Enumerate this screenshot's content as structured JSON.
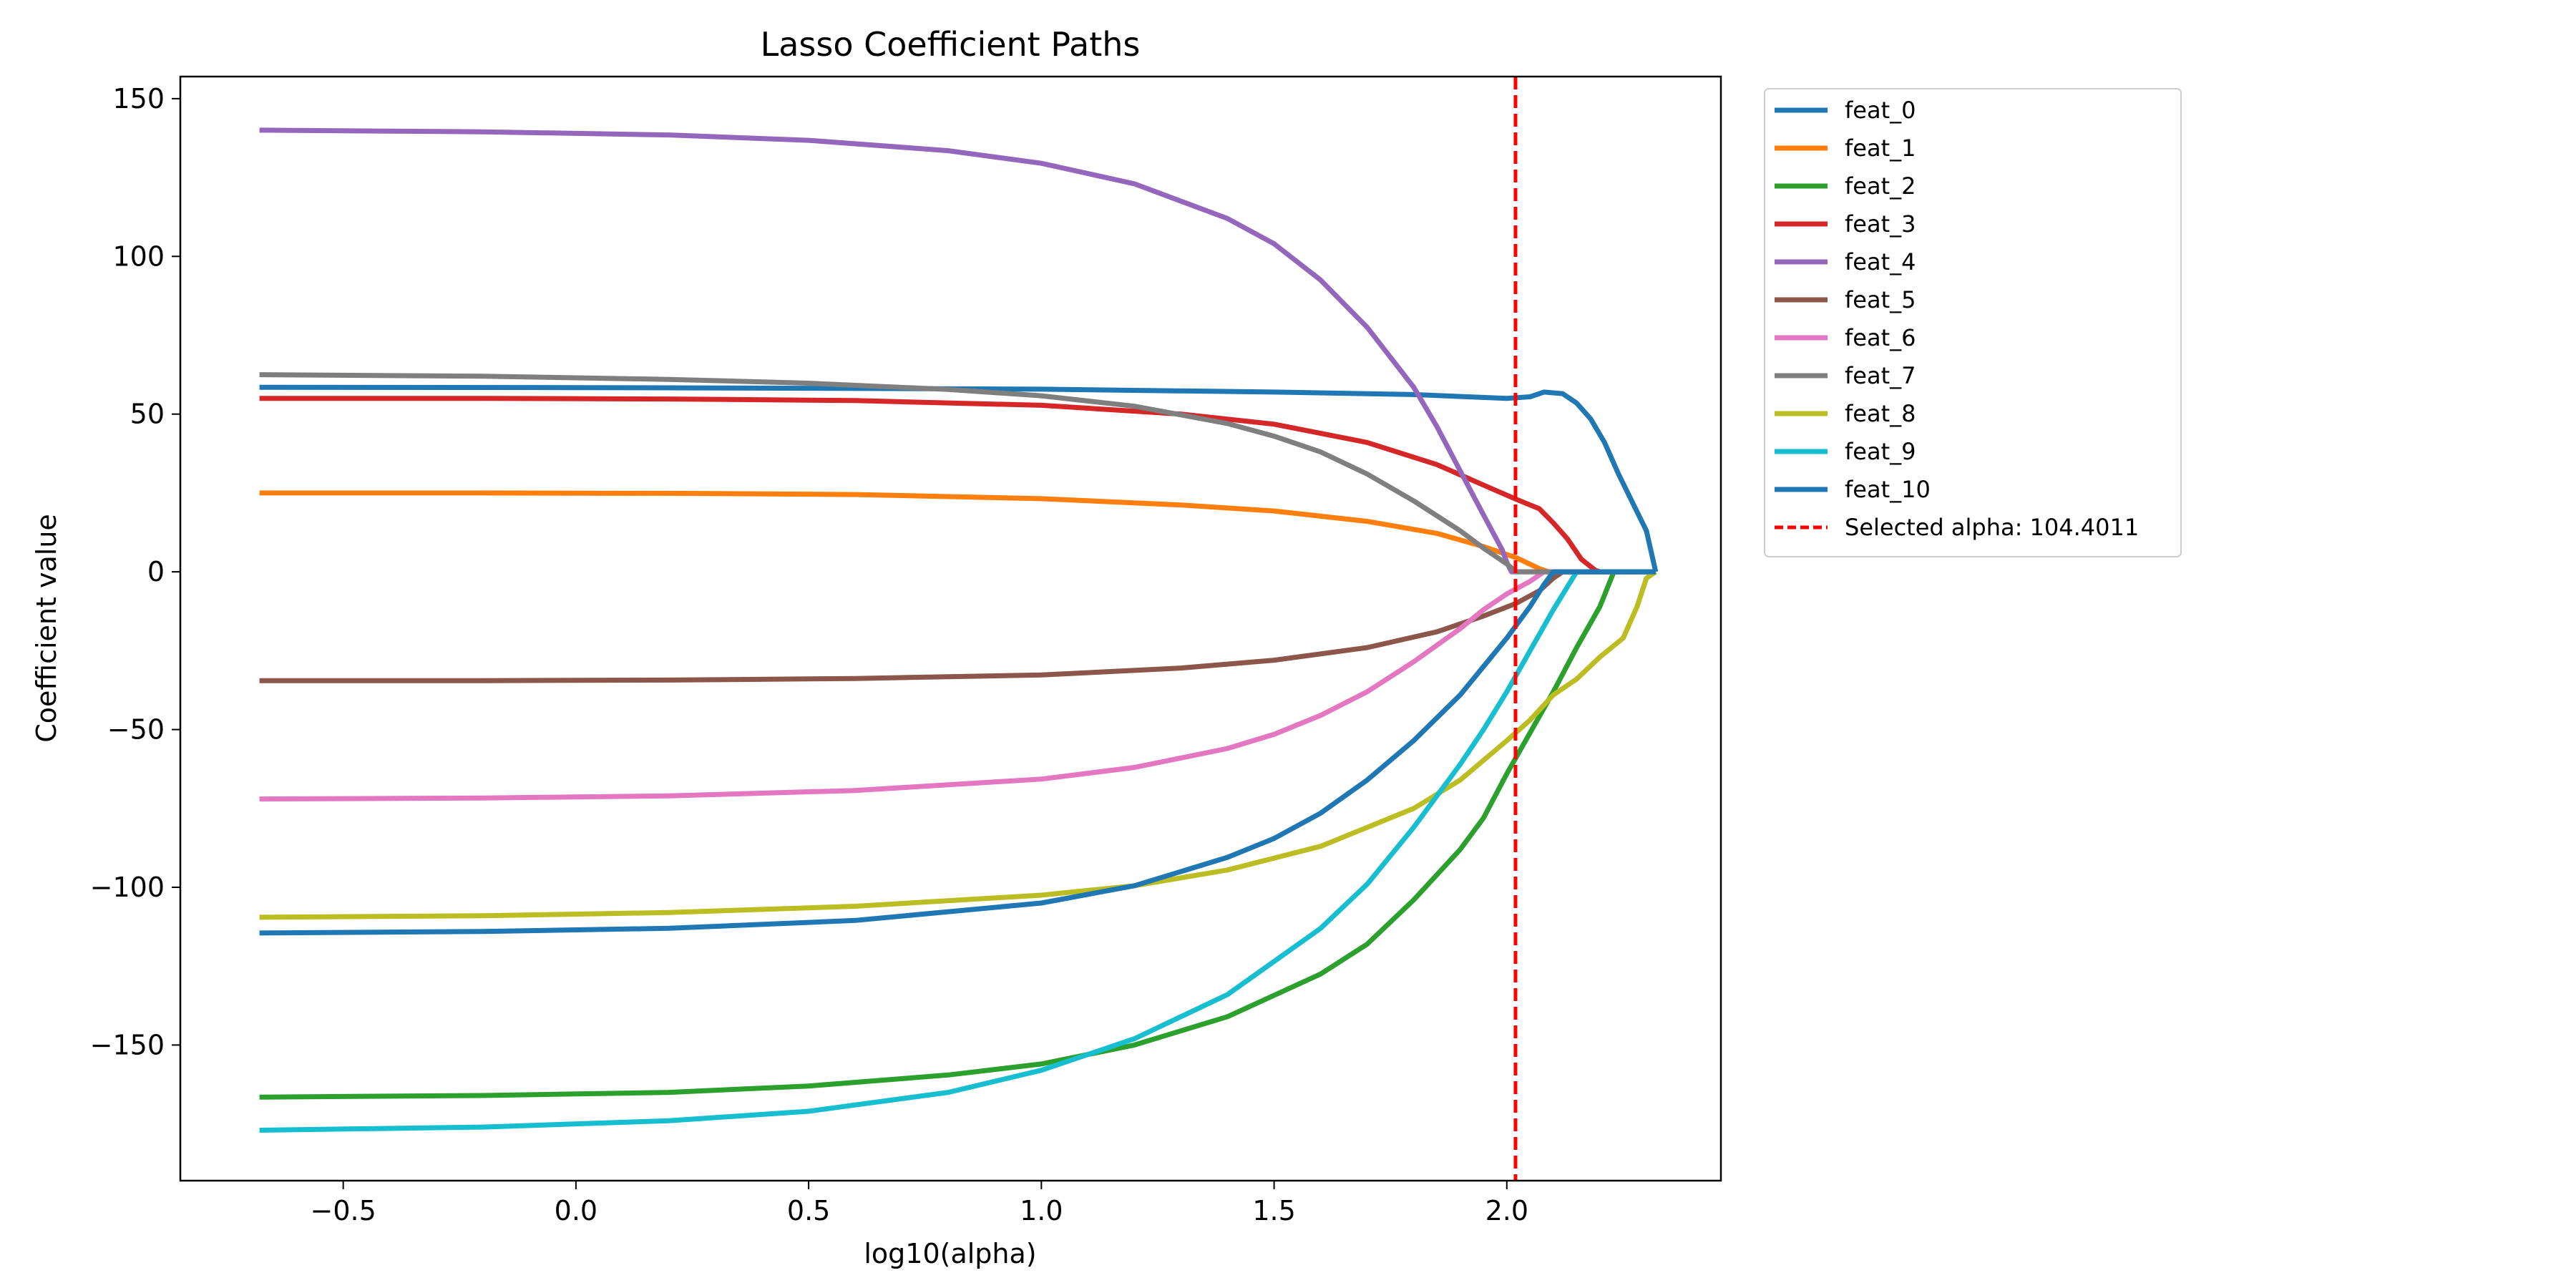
{
  "chart_data": {
    "type": "line",
    "title": "Lasso Coefficient Paths",
    "xlabel": "log10(alpha)",
    "ylabel": "Coefficient value",
    "xlim": [
      -0.85,
      2.46
    ],
    "ylim": [
      -193,
      157
    ],
    "xticks": [
      -0.5,
      0.0,
      0.5,
      1.0,
      1.5,
      2.0
    ],
    "xtick_labels": [
      "−0.5",
      "0.0",
      "0.5",
      "1.0",
      "1.5",
      "2.0"
    ],
    "yticks": [
      -150,
      -100,
      -50,
      0,
      50,
      100,
      150
    ],
    "ytick_labels": [
      "−150",
      "−100",
      "−50",
      "0",
      "50",
      "100",
      "150"
    ],
    "grid": false,
    "legend_position": "outside-top-right",
    "selected_alpha": {
      "x": 2.0187,
      "label": "Selected alpha: 104.4011",
      "color": "#ff0000"
    },
    "series": [
      {
        "name": "feat_0",
        "color": "#1f77b4",
        "points": [
          [
            -0.68,
            58.5
          ],
          [
            0.0,
            58.4
          ],
          [
            0.5,
            58.2
          ],
          [
            1.0,
            57.9
          ],
          [
            1.5,
            57.0
          ],
          [
            1.8,
            56.2
          ],
          [
            2.0,
            55.0
          ],
          [
            2.05,
            55.5
          ],
          [
            2.08,
            57.0
          ],
          [
            2.12,
            56.5
          ],
          [
            2.15,
            53.5
          ],
          [
            2.18,
            48.5
          ],
          [
            2.21,
            41.0
          ],
          [
            2.24,
            31.0
          ],
          [
            2.27,
            22.0
          ],
          [
            2.3,
            13.0
          ],
          [
            2.32,
            0.0
          ]
        ]
      },
      {
        "name": "feat_1",
        "color": "#ff7f0e",
        "points": [
          [
            -0.68,
            25.0
          ],
          [
            -0.2,
            25.0
          ],
          [
            0.2,
            24.9
          ],
          [
            0.6,
            24.5
          ],
          [
            1.0,
            23.2
          ],
          [
            1.3,
            21.2
          ],
          [
            1.5,
            19.3
          ],
          [
            1.7,
            16.0
          ],
          [
            1.85,
            12.2
          ],
          [
            1.95,
            8.0
          ],
          [
            2.02,
            4.5
          ],
          [
            2.07,
            1.0
          ],
          [
            2.09,
            0.0
          ],
          [
            2.32,
            0.0
          ]
        ]
      },
      {
        "name": "feat_2",
        "color": "#2ca02c",
        "points": [
          [
            -0.68,
            -166.5
          ],
          [
            -0.2,
            -166.0
          ],
          [
            0.2,
            -165.0
          ],
          [
            0.5,
            -163.0
          ],
          [
            0.8,
            -159.5
          ],
          [
            1.0,
            -156.0
          ],
          [
            1.2,
            -150.0
          ],
          [
            1.4,
            -141.0
          ],
          [
            1.6,
            -127.5
          ],
          [
            1.7,
            -118.0
          ],
          [
            1.8,
            -104.0
          ],
          [
            1.9,
            -88.0
          ],
          [
            1.95,
            -78.0
          ],
          [
            2.0,
            -64.0
          ],
          [
            2.05,
            -51.0
          ],
          [
            2.1,
            -38.0
          ],
          [
            2.15,
            -24.0
          ],
          [
            2.2,
            -11.0
          ],
          [
            2.23,
            0.0
          ],
          [
            2.32,
            0.0
          ]
        ]
      },
      {
        "name": "feat_3",
        "color": "#d62728",
        "points": [
          [
            -0.68,
            55.0
          ],
          [
            -0.2,
            55.0
          ],
          [
            0.2,
            54.8
          ],
          [
            0.6,
            54.3
          ],
          [
            1.0,
            52.8
          ],
          [
            1.3,
            50.0
          ],
          [
            1.5,
            46.8
          ],
          [
            1.7,
            41.0
          ],
          [
            1.85,
            34.0
          ],
          [
            1.95,
            27.5
          ],
          [
            2.02,
            23.0
          ],
          [
            2.07,
            20.0
          ],
          [
            2.1,
            15.5
          ],
          [
            2.13,
            10.5
          ],
          [
            2.16,
            4.0
          ],
          [
            2.19,
            0.5
          ],
          [
            2.2,
            0.0
          ],
          [
            2.32,
            0.0
          ]
        ]
      },
      {
        "name": "feat_4",
        "color": "#9467bd",
        "points": [
          [
            -0.68,
            140.0
          ],
          [
            -0.2,
            139.5
          ],
          [
            0.2,
            138.5
          ],
          [
            0.5,
            136.8
          ],
          [
            0.8,
            133.5
          ],
          [
            1.0,
            129.5
          ],
          [
            1.2,
            123.0
          ],
          [
            1.4,
            112.0
          ],
          [
            1.5,
            104.0
          ],
          [
            1.6,
            92.5
          ],
          [
            1.7,
            77.5
          ],
          [
            1.8,
            58.5
          ],
          [
            1.85,
            46.0
          ],
          [
            1.9,
            32.0
          ],
          [
            1.95,
            18.0
          ],
          [
            1.99,
            7.0
          ],
          [
            2.0,
            3.0
          ],
          [
            2.01,
            0.0
          ],
          [
            2.32,
            0.0
          ]
        ]
      },
      {
        "name": "feat_5",
        "color": "#8c564b",
        "points": [
          [
            -0.68,
            -34.5
          ],
          [
            -0.2,
            -34.5
          ],
          [
            0.2,
            -34.3
          ],
          [
            0.6,
            -33.8
          ],
          [
            1.0,
            -32.7
          ],
          [
            1.3,
            -30.5
          ],
          [
            1.5,
            -28.0
          ],
          [
            1.7,
            -24.0
          ],
          [
            1.85,
            -19.0
          ],
          [
            1.95,
            -14.0
          ],
          [
            2.02,
            -10.0
          ],
          [
            2.07,
            -6.0
          ],
          [
            2.1,
            -2.0
          ],
          [
            2.12,
            0.0
          ],
          [
            2.32,
            0.0
          ]
        ]
      },
      {
        "name": "feat_6",
        "color": "#e377c2",
        "points": [
          [
            -0.68,
            -72.0
          ],
          [
            -0.2,
            -71.7
          ],
          [
            0.2,
            -71.0
          ],
          [
            0.6,
            -69.3
          ],
          [
            1.0,
            -65.7
          ],
          [
            1.2,
            -62.0
          ],
          [
            1.4,
            -56.0
          ],
          [
            1.5,
            -51.5
          ],
          [
            1.6,
            -45.5
          ],
          [
            1.7,
            -38.0
          ],
          [
            1.8,
            -28.5
          ],
          [
            1.9,
            -18.0
          ],
          [
            1.95,
            -12.0
          ],
          [
            2.0,
            -7.0
          ],
          [
            2.05,
            -3.0
          ],
          [
            2.08,
            0.0
          ],
          [
            2.32,
            0.0
          ]
        ]
      },
      {
        "name": "feat_7",
        "color": "#7f7f7f",
        "points": [
          [
            -0.68,
            62.5
          ],
          [
            -0.2,
            62.0
          ],
          [
            0.2,
            61.0
          ],
          [
            0.5,
            59.8
          ],
          [
            0.8,
            57.8
          ],
          [
            1.0,
            55.8
          ],
          [
            1.2,
            52.5
          ],
          [
            1.4,
            47.0
          ],
          [
            1.5,
            43.0
          ],
          [
            1.6,
            38.0
          ],
          [
            1.7,
            31.0
          ],
          [
            1.8,
            22.5
          ],
          [
            1.9,
            13.0
          ],
          [
            1.95,
            7.5
          ],
          [
            2.0,
            2.5
          ],
          [
            2.02,
            0.0
          ],
          [
            2.32,
            0.0
          ]
        ]
      },
      {
        "name": "feat_8",
        "color": "#bcbd22",
        "points": [
          [
            -0.68,
            -109.5
          ],
          [
            -0.2,
            -109.0
          ],
          [
            0.2,
            -108.0
          ],
          [
            0.6,
            -106.0
          ],
          [
            1.0,
            -102.5
          ],
          [
            1.2,
            -99.5
          ],
          [
            1.4,
            -94.5
          ],
          [
            1.6,
            -87.0
          ],
          [
            1.8,
            -75.0
          ],
          [
            1.9,
            -66.0
          ],
          [
            2.0,
            -53.5
          ],
          [
            2.05,
            -47.0
          ],
          [
            2.1,
            -39.0
          ],
          [
            2.15,
            -34.0
          ],
          [
            2.2,
            -27.0
          ],
          [
            2.25,
            -21.0
          ],
          [
            2.28,
            -11.0
          ],
          [
            2.3,
            -2.0
          ],
          [
            2.32,
            0.0
          ]
        ]
      },
      {
        "name": "feat_9",
        "color": "#17becf",
        "points": [
          [
            -0.68,
            -177.0
          ],
          [
            -0.2,
            -176.0
          ],
          [
            0.2,
            -174.0
          ],
          [
            0.5,
            -171.0
          ],
          [
            0.8,
            -165.0
          ],
          [
            1.0,
            -158.0
          ],
          [
            1.2,
            -148.0
          ],
          [
            1.4,
            -134.0
          ],
          [
            1.6,
            -113.0
          ],
          [
            1.7,
            -99.0
          ],
          [
            1.8,
            -81.0
          ],
          [
            1.9,
            -61.0
          ],
          [
            1.95,
            -50.0
          ],
          [
            2.0,
            -38.0
          ],
          [
            2.05,
            -25.0
          ],
          [
            2.1,
            -12.0
          ],
          [
            2.15,
            0.0
          ],
          [
            2.32,
            0.0
          ]
        ]
      },
      {
        "name": "feat_10",
        "color": "#1f77b4",
        "points": [
          [
            -0.68,
            -114.5
          ],
          [
            -0.2,
            -114.0
          ],
          [
            0.2,
            -113.0
          ],
          [
            0.6,
            -110.5
          ],
          [
            1.0,
            -105.0
          ],
          [
            1.2,
            -99.5
          ],
          [
            1.4,
            -90.5
          ],
          [
            1.5,
            -84.5
          ],
          [
            1.6,
            -76.5
          ],
          [
            1.7,
            -66.0
          ],
          [
            1.8,
            -53.5
          ],
          [
            1.9,
            -39.0
          ],
          [
            1.95,
            -30.0
          ],
          [
            2.0,
            -21.0
          ],
          [
            2.05,
            -11.0
          ],
          [
            2.08,
            -4.0
          ],
          [
            2.1,
            0.0
          ],
          [
            2.32,
            0.0
          ]
        ]
      }
    ]
  }
}
